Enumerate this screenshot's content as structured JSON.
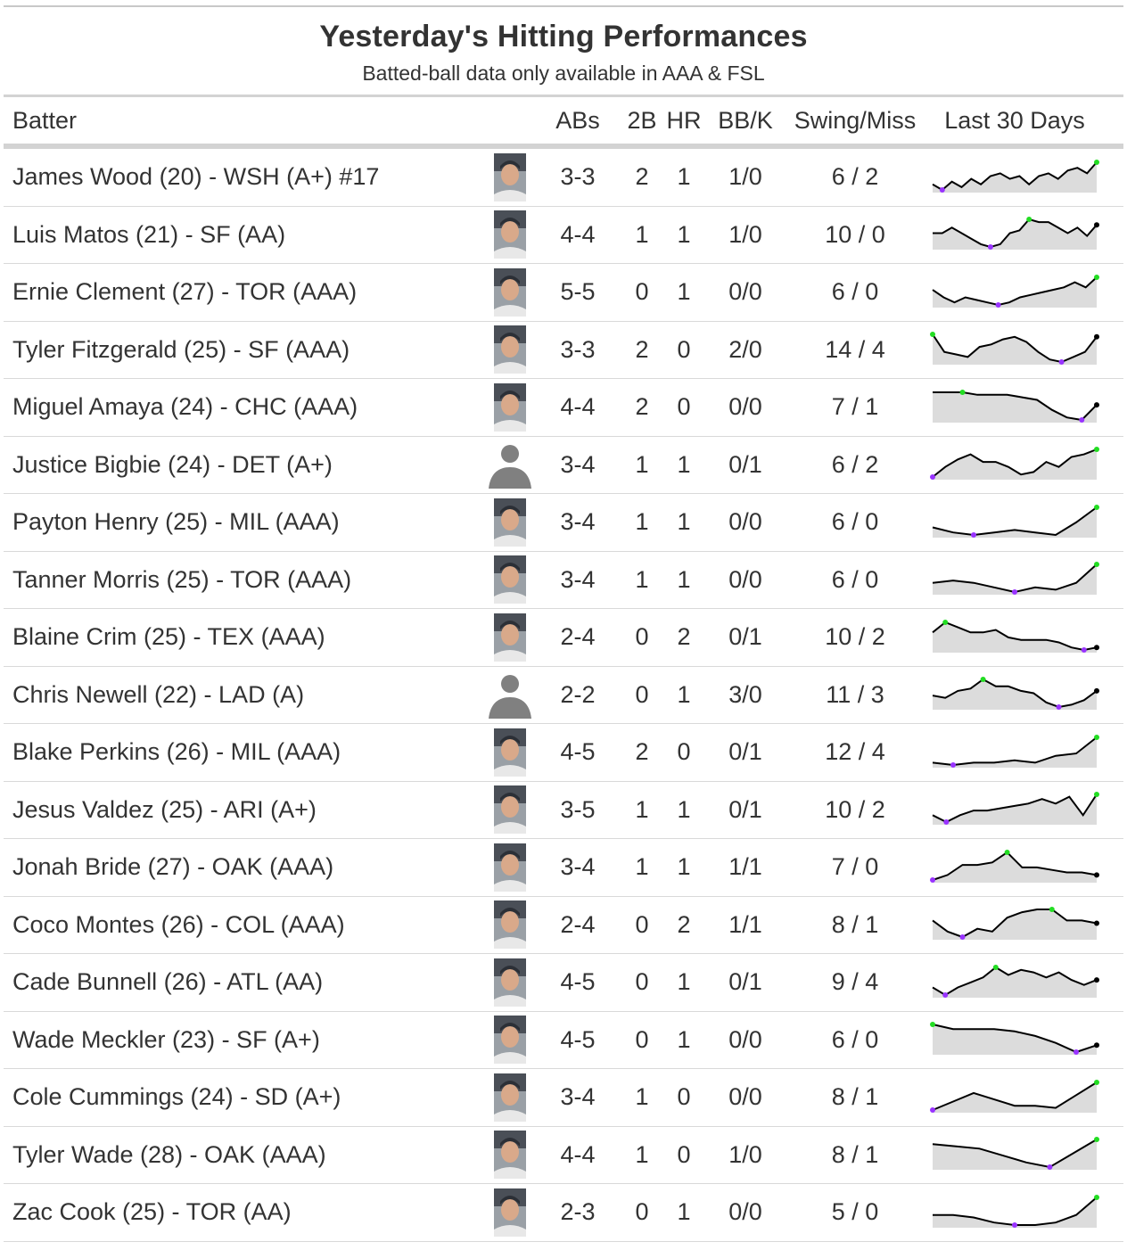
{
  "title": "Yesterday's Hitting Performances",
  "subtitle": "Batted-ball data only available in AAA & FSL",
  "headers": {
    "batter": "Batter",
    "abs": "ABs",
    "doubles": "2B",
    "hr": "HR",
    "bbk": "BB/K",
    "swing": "Swing/Miss",
    "last30": "Last 30 Days"
  },
  "colors": {
    "spark_line": "#000000",
    "spark_fill": "#dcdcdc",
    "spark_high": "#22dd22",
    "spark_low": "#9933ff",
    "rule": "#d3d3d3"
  },
  "rows": [
    {
      "batter": "James Wood (20) - WSH (A+) #17",
      "photo": "player-photo",
      "abs": "3-3",
      "doubles": "2",
      "hr": "1",
      "bbk": "1/0",
      "swing": "6 / 2",
      "spark": [
        5,
        3,
        6,
        4,
        7,
        5,
        8,
        9,
        7,
        8,
        5,
        8,
        9,
        7,
        10,
        11,
        9,
        13
      ]
    },
    {
      "batter": "Luis Matos (21) - SF (AA)",
      "photo": "player-photo",
      "abs": "4-4",
      "doubles": "1",
      "hr": "1",
      "bbk": "1/0",
      "swing": "10 / 0",
      "spark": [
        6,
        6,
        8,
        6,
        4,
        2,
        1,
        2,
        6,
        7,
        11,
        10,
        10,
        8,
        6,
        8,
        5,
        9
      ]
    },
    {
      "batter": "Ernie Clement (27) - TOR (AAA)",
      "photo": "player-photo",
      "abs": "5-5",
      "doubles": "0",
      "hr": "1",
      "bbk": "0/0",
      "swing": "6 / 0",
      "spark": [
        8,
        5,
        3,
        5,
        4,
        3,
        2,
        3,
        5,
        6,
        7,
        8,
        9,
        11,
        9,
        13
      ]
    },
    {
      "batter": "Tyler Fitzgerald (25) - SF (AAA)",
      "photo": "player-photo",
      "abs": "3-3",
      "doubles": "2",
      "hr": "0",
      "bbk": "2/0",
      "swing": "14 / 4",
      "spark": [
        12,
        5,
        4,
        3,
        7,
        8,
        10,
        11,
        9,
        5,
        2,
        1,
        3,
        5,
        11
      ]
    },
    {
      "batter": "Miguel Amaya (24) - CHC (AAA)",
      "photo": "player-photo",
      "abs": "4-4",
      "doubles": "2",
      "hr": "0",
      "bbk": "0/0",
      "swing": "7 / 1",
      "spark": [
        12,
        12,
        12,
        11,
        11,
        11,
        10,
        9,
        5,
        2,
        1,
        7
      ]
    },
    {
      "batter": "Justice Bigbie (24) - DET (A+)",
      "photo": "silhouette",
      "abs": "3-4",
      "doubles": "1",
      "hr": "1",
      "bbk": "0/1",
      "swing": "6 / 2",
      "spark": [
        1,
        5,
        8,
        10,
        7,
        7,
        5,
        2,
        3,
        7,
        5,
        9,
        10,
        12
      ]
    },
    {
      "batter": "Payton Henry (25) - MIL (AAA)",
      "photo": "player-photo",
      "abs": "3-4",
      "doubles": "1",
      "hr": "1",
      "bbk": "0/0",
      "swing": "6 / 0",
      "spark": [
        4,
        2,
        1,
        2,
        3,
        2,
        1,
        6,
        12
      ]
    },
    {
      "batter": "Tanner Morris (25) - TOR (AAA)",
      "photo": "player-photo",
      "abs": "3-4",
      "doubles": "1",
      "hr": "1",
      "bbk": "0/0",
      "swing": "6 / 0",
      "spark": [
        5,
        6,
        5,
        3,
        1,
        3,
        2,
        5,
        13
      ]
    },
    {
      "batter": "Blaine Crim (25) - TEX (AAA)",
      "photo": "player-photo",
      "abs": "2-4",
      "doubles": "0",
      "hr": "2",
      "bbk": "0/1",
      "swing": "10 / 2",
      "spark": [
        8,
        12,
        10,
        8,
        8,
        9,
        6,
        5,
        5,
        5,
        4,
        2,
        1,
        2
      ]
    },
    {
      "batter": "Chris Newell (22) - LAD (A)",
      "photo": "silhouette",
      "abs": "2-2",
      "doubles": "0",
      "hr": "1",
      "bbk": "3/0",
      "swing": "11 / 3",
      "spark": [
        6,
        5,
        8,
        9,
        13,
        10,
        10,
        8,
        7,
        3,
        1,
        2,
        4,
        8
      ]
    },
    {
      "batter": "Blake Perkins (26) - MIL (AAA)",
      "photo": "player-photo",
      "abs": "4-5",
      "doubles": "2",
      "hr": "0",
      "bbk": "0/1",
      "swing": "12 / 4",
      "spark": [
        2,
        1,
        2,
        2,
        3,
        2,
        5,
        6,
        13
      ]
    },
    {
      "batter": "Jesus Valdez (25) - ARI (A+)",
      "photo": "player-photo",
      "abs": "3-5",
      "doubles": "1",
      "hr": "1",
      "bbk": "0/1",
      "swing": "10 / 2",
      "spark": [
        3,
        0,
        3,
        5,
        5,
        6,
        7,
        8,
        10,
        8,
        11,
        3,
        12
      ]
    },
    {
      "batter": "Jonah Bride (27) - OAK (AAA)",
      "photo": "player-photo",
      "abs": "3-4",
      "doubles": "1",
      "hr": "1",
      "bbk": "1/1",
      "swing": "7 / 0",
      "spark": [
        0,
        2,
        6,
        6,
        7,
        11,
        5,
        5,
        4,
        3,
        3,
        2
      ]
    },
    {
      "batter": "Coco Montes (26) - COL (AAA)",
      "photo": "player-photo",
      "abs": "2-4",
      "doubles": "0",
      "hr": "2",
      "bbk": "1/1",
      "swing": "8 / 1",
      "spark": [
        8,
        4,
        2,
        5,
        4,
        9,
        11,
        12,
        12,
        8,
        8,
        7
      ]
    },
    {
      "batter": "Cade Bunnell (26) - ATL (AA)",
      "photo": "player-photo",
      "abs": "4-5",
      "doubles": "0",
      "hr": "1",
      "bbk": "0/1",
      "swing": "9 / 4",
      "spark": [
        4,
        1,
        4,
        6,
        8,
        12,
        9,
        11,
        10,
        8,
        10,
        7,
        5,
        7
      ]
    },
    {
      "batter": "Wade Meckler (23) - SF (A+)",
      "photo": "player-photo",
      "abs": "4-5",
      "doubles": "0",
      "hr": "1",
      "bbk": "0/0",
      "swing": "6 / 0",
      "spark": [
        13,
        11,
        11,
        11,
        10,
        8,
        5,
        1,
        4
      ]
    },
    {
      "batter": "Cole Cummings (24) - SD (A+)",
      "photo": "player-photo",
      "abs": "3-4",
      "doubles": "1",
      "hr": "0",
      "bbk": "0/0",
      "swing": "8 / 1",
      "spark": [
        1,
        5,
        9,
        6,
        3,
        3,
        2,
        8,
        14
      ]
    },
    {
      "batter": "Tyler Wade (28) - OAK (AAA)",
      "photo": "player-photo",
      "abs": "4-4",
      "doubles": "1",
      "hr": "0",
      "bbk": "1/0",
      "swing": "8 / 1",
      "spark": [
        11,
        10,
        9,
        6,
        3,
        1,
        7,
        13
      ]
    },
    {
      "batter": "Zac Cook (25) - TOR (AA)",
      "photo": "player-photo",
      "abs": "2-3",
      "doubles": "0",
      "hr": "1",
      "bbk": "0/0",
      "swing": "5 / 0",
      "spark": [
        5,
        5,
        4,
        2,
        1,
        1,
        2,
        5,
        12
      ]
    }
  ]
}
